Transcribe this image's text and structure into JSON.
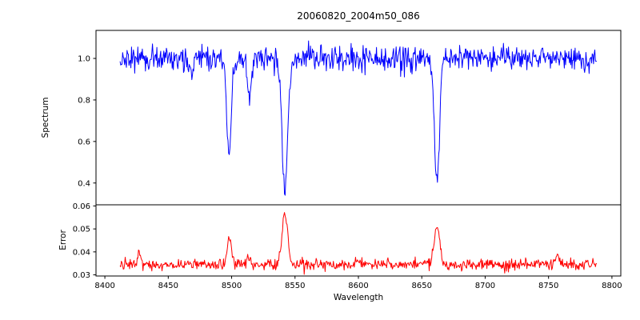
{
  "title": "20060820_2004m50_086",
  "xlabel": "Wavelength",
  "background": "#ffffff",
  "axes": {
    "xlim": [
      8393,
      8807
    ],
    "xticks": [
      8400,
      8450,
      8500,
      8550,
      8600,
      8650,
      8700,
      8750,
      8800
    ],
    "xticklabels": [
      "8400",
      "8450",
      "8500",
      "8550",
      "8600",
      "8650",
      "8700",
      "8750",
      "8800"
    ]
  },
  "chart_data": [
    {
      "type": "line",
      "series_name": "spectrum",
      "title": "20060820_2004m50_086",
      "ylabel": "Spectrum",
      "color": "#0000ff",
      "x_start": 8412,
      "x_end": 8788,
      "n_points": 752,
      "baseline": 1.0,
      "noise_sigma": 0.03,
      "xlim": [
        8393,
        8807
      ],
      "ylim": [
        0.295,
        1.135
      ],
      "yticks": [
        0.4,
        0.6,
        0.8,
        1.0
      ],
      "yticklabels": [
        "0.4",
        "0.6",
        "0.8",
        "1.0"
      ],
      "grid": false,
      "absorption_lines": [
        {
          "center": 8498,
          "depth": 0.45,
          "sigma": 1.8
        },
        {
          "center": 8542,
          "depth": 0.64,
          "sigma": 2.2
        },
        {
          "center": 8662,
          "depth": 0.59,
          "sigma": 2.0
        },
        {
          "center": 8468,
          "depth": 0.1,
          "sigma": 1.3
        },
        {
          "center": 8514,
          "depth": 0.18,
          "sigma": 1.5
        }
      ]
    },
    {
      "type": "line",
      "series_name": "error",
      "ylabel": "Error",
      "color": "#ff0000",
      "x_start": 8412,
      "x_end": 8788,
      "n_points": 752,
      "baseline": 0.0345,
      "noise_sigma": 0.0012,
      "xlim": [
        8393,
        8807
      ],
      "ylim": [
        0.0295,
        0.0605
      ],
      "yticks": [
        0.03,
        0.04,
        0.05,
        0.06
      ],
      "yticklabels": [
        "0.03",
        "0.04",
        "0.05",
        "0.06"
      ],
      "grid": false,
      "peaks": [
        {
          "center": 8498,
          "amplitude": 0.011,
          "sigma": 1.8
        },
        {
          "center": 8542,
          "amplitude": 0.023,
          "sigma": 2.2
        },
        {
          "center": 8662,
          "amplitude": 0.017,
          "sigma": 2.0
        },
        {
          "center": 8427,
          "amplitude": 0.006,
          "sigma": 1.2
        },
        {
          "center": 8514,
          "amplitude": 0.003,
          "sigma": 1.5
        },
        {
          "center": 8757,
          "amplitude": 0.0035,
          "sigma": 2.0
        }
      ]
    }
  ]
}
